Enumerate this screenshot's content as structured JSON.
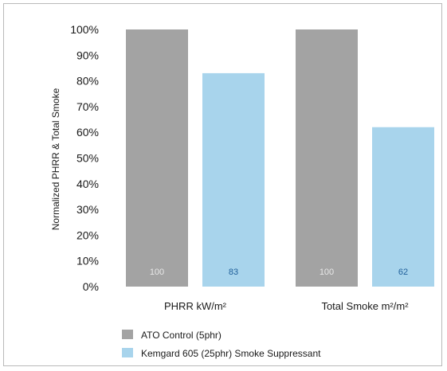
{
  "chart_data": {
    "type": "bar",
    "title": "",
    "xlabel": "",
    "ylabel": "Normalized PHRR & Total Smoke",
    "categories": [
      "PHRR kW/m²",
      "Total Smoke m²/m²"
    ],
    "series": [
      {
        "name": "ATO Control (5phr)",
        "values": [
          100,
          100
        ],
        "color": "#a3a3a3",
        "label_color": "#e8e8e8"
      },
      {
        "name": "Kemgard 605 (25phr) Smoke Suppressant",
        "values": [
          83,
          62
        ],
        "color": "#a8d4ec",
        "label_color": "#1f5f9a"
      }
    ],
    "ylim": [
      0,
      100
    ],
    "yticks": [
      0,
      10,
      20,
      30,
      40,
      50,
      60,
      70,
      80,
      90,
      100
    ],
    "ytick_labels": [
      "0%",
      "10%",
      "20%",
      "30%",
      "40%",
      "50%",
      "60%",
      "70%",
      "80%",
      "90%",
      "100%"
    ],
    "grid": false,
    "legend_position": "bottom"
  }
}
